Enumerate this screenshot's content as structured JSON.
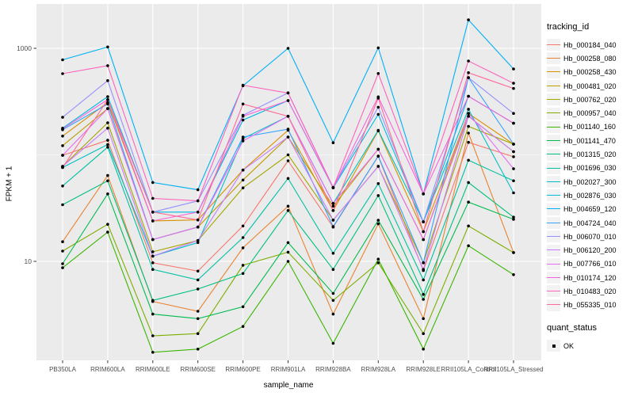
{
  "figure": {
    "background": "#FFFFFF",
    "panel_background": "#EBEBEB",
    "grid_color": "#FFFFFF",
    "tick_color": "#333333",
    "tick_label_color": "#4D4D4D",
    "point_color": "#000000",
    "legend_key_fill": "#F2F2F2"
  },
  "chart_data": {
    "type": "line",
    "title": "",
    "xlabel": "sample_name",
    "ylabel": "FPKM + 1",
    "y_scale": "log10",
    "ylim": [
      1.3,
      2700
    ],
    "y_major_ticks": [
      {
        "value": 10,
        "label": "10"
      },
      {
        "value": 1000,
        "label": "1000"
      }
    ],
    "y_minor_gridlines": [
      100
    ],
    "grid": "on",
    "legend_position": "right",
    "categories": [
      "PB350LA",
      "RRIM600LA",
      "RRIM600LE",
      "RRIM600SE",
      "RRIM600PE",
      "RRIM901LA",
      "RRIM928BA",
      "RRIM928LA",
      "RRIM928LE",
      "RRII105LA_Control",
      "RRII105LA_Stressed"
    ],
    "legend": {
      "title": "tracking_id"
    },
    "legend2": {
      "title": "quant_status",
      "items": [
        {
          "label": "OK",
          "marker": "black-square"
        }
      ]
    },
    "series": [
      {
        "name": "Hb_000184_040",
        "color": "#F8766D",
        "values": [
          99,
          137,
          9.7,
          8.1,
          21.5,
          88,
          21,
          97,
          8.2,
          131,
          96
        ]
      },
      {
        "name": "Hb_000258_080",
        "color": "#EA8331",
        "values": [
          15.3,
          64,
          4.2,
          3.4,
          13.4,
          33,
          3.2,
          22.5,
          2.9,
          160,
          12.1
        ]
      },
      {
        "name": "Hb_000258_430",
        "color": "#D89000",
        "values": [
          150,
          310,
          24,
          24.5,
          72,
          170,
          30,
          168,
          19,
          245,
          126
        ]
      },
      {
        "name": "Hb_000481_020",
        "color": "#C09B00",
        "values": [
          122,
          272,
          16,
          21,
          58,
          147,
          33,
          113,
          16,
          230,
          107
        ]
      },
      {
        "name": "Hb_000762_020",
        "color": "#A3A500",
        "values": [
          78,
          200,
          12.3,
          15.7,
          49,
          100,
          24.4,
          78,
          9.7,
          185,
          126
        ]
      },
      {
        "name": "Hb_000957_040",
        "color": "#7CAE00",
        "values": [
          12.5,
          22.3,
          2.0,
          2.1,
          9.2,
          12.2,
          4.3,
          9.7,
          2.1,
          21.5,
          12.1
        ]
      },
      {
        "name": "Hb_001140_160",
        "color": "#39B600",
        "values": [
          8.7,
          18.8,
          1.4,
          1.5,
          2.45,
          10,
          1.7,
          10.5,
          1.5,
          14,
          7.5
        ]
      },
      {
        "name": "Hb_001141_470",
        "color": "#00BB4E",
        "values": [
          9.5,
          43,
          3.2,
          2.9,
          3.75,
          15,
          5.0,
          24.3,
          4.4,
          36,
          24.8
        ]
      },
      {
        "name": "Hb_001315_020",
        "color": "#00BF7D",
        "values": [
          34,
          57,
          4.3,
          5.5,
          7.7,
          30,
          8.4,
          41.5,
          4.9,
          55,
          26
        ]
      },
      {
        "name": "Hb_001696_030",
        "color": "#00C1A3",
        "values": [
          51,
          118,
          8.4,
          6.7,
          16.7,
          60,
          11.9,
          53.7,
          6.7,
          89,
          57
        ]
      },
      {
        "name": "Hb_002027_300",
        "color": "#00BFC4",
        "values": [
          76,
          125,
          11.2,
          15,
          142,
          230,
          35,
          170,
          23.5,
          268,
          44
        ]
      },
      {
        "name": "Hb_002876_030",
        "color": "#00BAE0",
        "values": [
          178,
          352,
          29,
          29,
          212,
          323,
          49,
          240,
          23.5,
          355,
          198
        ]
      },
      {
        "name": "Hb_004659_120",
        "color": "#00B0F6",
        "values": [
          780,
          1030,
          55,
          47,
          445,
          1000,
          130,
          1010,
          43,
          1850,
          640
        ]
      },
      {
        "name": "Hb_004724_040",
        "color": "#35A2FF",
        "values": [
          172,
          300,
          16,
          21,
          147,
          174,
          21.2,
          97.5,
          9.7,
          530,
          126
        ]
      },
      {
        "name": "Hb_006070_010",
        "color": "#9590FF",
        "values": [
          225,
          497,
          29,
          37,
          235,
          382,
          49.4,
          280,
          23.5,
          530,
          245
        ]
      },
      {
        "name": "Hb_006120_200",
        "color": "#C77CFF",
        "values": [
          78,
          178,
          11.2,
          15.7,
          72,
          147,
          24.4,
          78,
          8.4,
          230,
          107
        ]
      },
      {
        "name": "Hb_007766_010",
        "color": "#E76BF3",
        "values": [
          99,
          272,
          16,
          21,
          135,
          230,
          35,
          113,
          16,
          245,
          74
        ]
      },
      {
        "name": "Hb_010174_120",
        "color": "#FA62DB",
        "values": [
          175,
          330,
          24,
          29,
          230,
          323,
          49.4,
          350,
          43,
          355,
          198
        ]
      },
      {
        "name": "Hb_010483_020",
        "color": "#FF62BC",
        "values": [
          578,
          687,
          39,
          37,
          450,
          380,
          49.4,
          580,
          43,
          760,
          470
        ]
      },
      {
        "name": "Hb_055335_010",
        "color": "#FF6A98",
        "values": [
          76,
          330,
          29,
          24.5,
          300,
          230,
          30,
          340,
          19,
          590,
          420
        ]
      }
    ]
  }
}
